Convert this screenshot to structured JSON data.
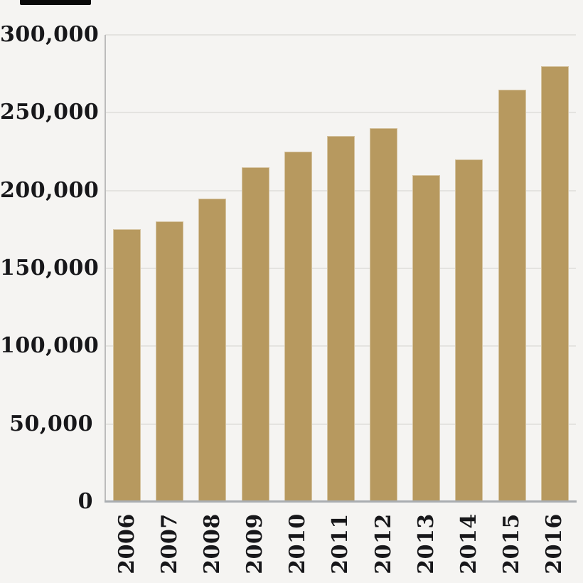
{
  "chart_data": {
    "type": "bar",
    "categories": [
      "2006",
      "2007",
      "2008",
      "2009",
      "2010",
      "2011",
      "2012",
      "2013",
      "2014",
      "2015",
      "2016"
    ],
    "values": [
      175000,
      180000,
      195000,
      215000,
      225000,
      235000,
      240000,
      210000,
      220000,
      265000,
      280000
    ],
    "title": "",
    "xlabel": "",
    "ylabel": "",
    "ylim": [
      0,
      300000
    ],
    "ytick_values": [
      0,
      50000,
      100000,
      150000,
      200000,
      250000,
      300000
    ],
    "ytick_labels": [
      "0",
      "50,000",
      "100,000",
      "150,000",
      "200,000",
      "250,000",
      "300,000"
    ],
    "grid": true,
    "legend": false,
    "colors": {
      "bar": "#b7995f",
      "background": "#f5f4f2",
      "gridline": "#e4e3e0",
      "y_axis_line": "#bcbcbc",
      "x_axis_line": "#a9adb1",
      "text": "#17171a"
    }
  }
}
